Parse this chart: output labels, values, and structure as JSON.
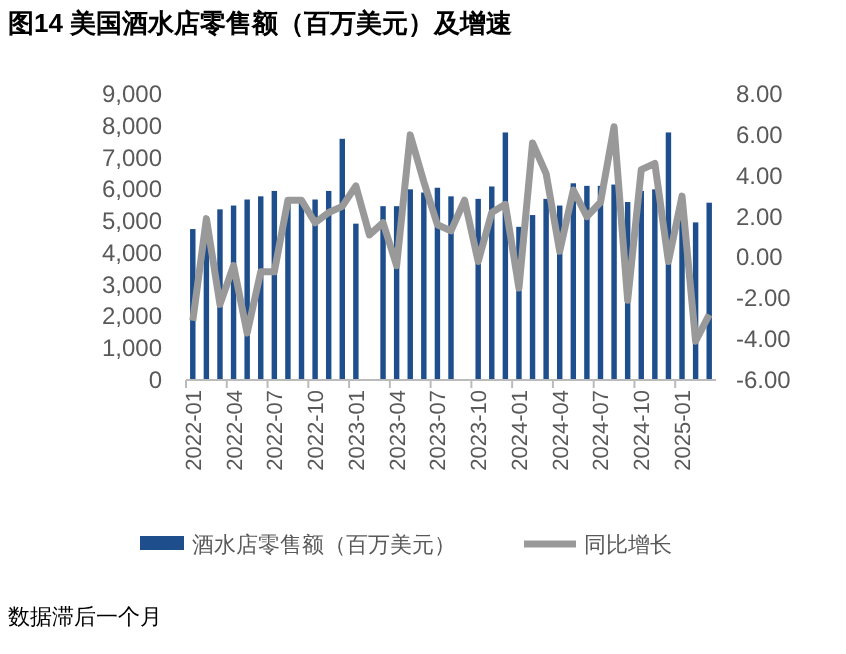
{
  "chart_data": {
    "type": "bar",
    "title": "图14 美国酒水店零售额（百万美元）及增速",
    "annotations": [
      "数据滞后一个月"
    ],
    "categories": [
      "2022-01",
      null,
      null,
      "2022-04",
      null,
      null,
      "2022-07",
      null,
      null,
      "2022-10",
      null,
      null,
      "2023-01",
      null,
      null,
      "2023-04",
      null,
      null,
      "2023-07",
      null,
      null,
      "2023-10",
      null,
      null,
      "2024-01",
      null,
      null,
      "2024-04",
      null,
      null,
      "2024-07",
      null,
      null,
      "2024-10",
      null,
      null,
      "2025-01",
      null,
      null
    ],
    "series": [
      {
        "name": "酒水店零售额（百万美元）",
        "color": "#1f4e8c",
        "values": [
          4750,
          4400,
          5370,
          5490,
          5680,
          5780,
          5950,
          5680,
          5680,
          5680,
          5950,
          7590,
          4920,
          null,
          5470,
          5470,
          6000,
          5900,
          6050,
          5780,
          null,
          5700,
          6090,
          7790,
          4820,
          5190,
          5700,
          5490,
          6190,
          6110,
          6110,
          6150,
          5600,
          5950,
          6000,
          7790,
          5200,
          4960,
          5580
        ]
      },
      {
        "name": "同比增长",
        "type": "line",
        "axis": "y2",
        "color": "#999999",
        "values": [
          -3.1,
          1.9,
          -2.3,
          -0.4,
          -3.7,
          -0.7,
          -0.7,
          2.8,
          2.8,
          1.7,
          2.2,
          2.5,
          3.5,
          1.1,
          1.7,
          -0.4,
          6.0,
          3.7,
          1.6,
          1.3,
          2.8,
          -0.2,
          2.2,
          2.6,
          -1.5,
          5.6,
          4.1,
          0.3,
          3.3,
          2.0,
          2.7,
          6.4,
          -2.1,
          4.3,
          4.6,
          -0.2,
          3.0,
          -4.1,
          -2.8
        ]
      }
    ],
    "ylim": [
      0,
      9000
    ],
    "yticks": [
      {
        "value": 0,
        "label": "0"
      },
      {
        "value": 1000,
        "label": "1,000"
      },
      {
        "value": 2000,
        "label": "2,000"
      },
      {
        "value": 3000,
        "label": "3,000"
      },
      {
        "value": 4000,
        "label": "4,000"
      },
      {
        "value": 5000,
        "label": "5,000"
      },
      {
        "value": 6000,
        "label": "6,000"
      },
      {
        "value": 7000,
        "label": "7,000"
      },
      {
        "value": 8000,
        "label": "8,000"
      },
      {
        "value": 9000,
        "label": "9,000"
      }
    ],
    "y2lim": [
      -6,
      8
    ],
    "y2ticks": [
      {
        "value": -6,
        "label": "-6.00"
      },
      {
        "value": -4,
        "label": "-4.00"
      },
      {
        "value": -2,
        "label": "-2.00"
      },
      {
        "value": 0,
        "label": "0.00"
      },
      {
        "value": 2,
        "label": "2.00"
      },
      {
        "value": 4,
        "label": "4.00"
      },
      {
        "value": 6,
        "label": "6.00"
      },
      {
        "value": 8,
        "label": "8.00"
      }
    ],
    "legend": "bottom",
    "grid": false
  }
}
